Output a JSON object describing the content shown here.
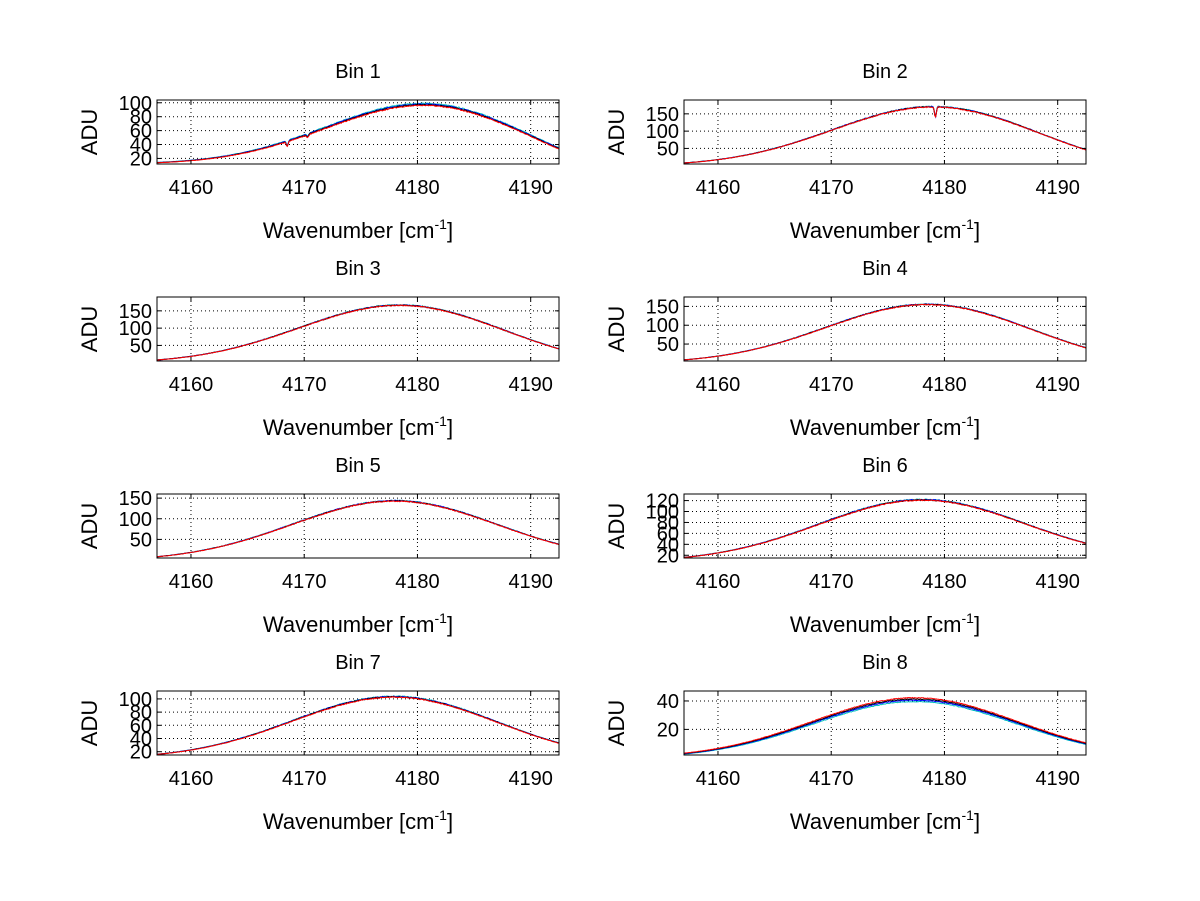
{
  "figure": {
    "background": "#ffffff"
  },
  "chart_data": [
    {
      "type": "line",
      "title": "Bin 1",
      "xlabel": "Wavenumber [cm",
      "xlabel_sup": "-1",
      "xlabel_tail": "]",
      "ylabel": "ADU",
      "xlim": [
        4157,
        4192.5
      ],
      "xticks": [
        4160,
        4170,
        4180,
        4190
      ],
      "ylim": [
        12,
        104
      ],
      "yticks": [
        20,
        40,
        60,
        80,
        100
      ],
      "grid": true,
      "peak_x": 4180,
      "peak_y": 97,
      "base_y": 14,
      "end_y": 34,
      "spread": [
        0,
        2,
        3,
        4
      ],
      "noise": 1.5,
      "dips": [
        {
          "x": 4168.5,
          "depth": 7
        },
        {
          "x": 4170.3,
          "depth": 4
        }
      ],
      "series": [
        {
          "color": "#00bfbf",
          "offset": 2
        },
        {
          "color": "#0000ff",
          "offset": 1
        },
        {
          "color": "#000000",
          "offset": 0
        },
        {
          "color": "#ff0000",
          "offset": -1
        }
      ]
    },
    {
      "type": "line",
      "title": "Bin 2",
      "xlabel": "Wavenumber [cm",
      "xlabel_sup": "-1",
      "xlabel_tail": "]",
      "ylabel": "ADU",
      "xlim": [
        4157,
        4192.5
      ],
      "xticks": [
        4160,
        4170,
        4180,
        4190
      ],
      "ylim": [
        5,
        190
      ],
      "yticks": [
        50,
        100,
        150
      ],
      "grid": true,
      "peak_x": 4178.5,
      "peak_y": 170,
      "base_y": 8,
      "end_y": 46,
      "spread": [
        0,
        1,
        2,
        3
      ],
      "noise": 3,
      "dips": [
        {
          "x": 4179.2,
          "depth": 30
        }
      ],
      "series": [
        {
          "color": "#00bfbf",
          "offset": 1
        },
        {
          "color": "#0000ff",
          "offset": 0.5
        },
        {
          "color": "#000000",
          "offset": 0
        },
        {
          "color": "#ff0000",
          "offset": -0.5
        }
      ]
    },
    {
      "type": "line",
      "title": "Bin 3",
      "xlabel": "Wavenumber [cm",
      "xlabel_sup": "-1",
      "xlabel_tail": "]",
      "ylabel": "ADU",
      "xlim": [
        4157,
        4192.5
      ],
      "xticks": [
        4160,
        4170,
        4180,
        4190
      ],
      "ylim": [
        5,
        190
      ],
      "yticks": [
        50,
        100,
        150
      ],
      "grid": true,
      "peak_x": 4178,
      "peak_y": 166,
      "base_y": 8,
      "end_y": 40,
      "spread": [
        0,
        1,
        2,
        3
      ],
      "noise": 3,
      "dips": [],
      "series": [
        {
          "color": "#00bfbf",
          "offset": 1
        },
        {
          "color": "#0000ff",
          "offset": 0.5
        },
        {
          "color": "#000000",
          "offset": 0
        },
        {
          "color": "#ff0000",
          "offset": -0.5
        }
      ]
    },
    {
      "type": "line",
      "title": "Bin 4",
      "xlabel": "Wavenumber [cm",
      "xlabel_sup": "-1",
      "xlabel_tail": "]",
      "ylabel": "ADU",
      "xlim": [
        4157,
        4192.5
      ],
      "xticks": [
        4160,
        4170,
        4180,
        4190
      ],
      "ylim": [
        5,
        175
      ],
      "yticks": [
        50,
        100,
        150
      ],
      "grid": true,
      "peak_x": 4178,
      "peak_y": 155,
      "base_y": 8,
      "end_y": 40,
      "spread": [
        0,
        1,
        2,
        3
      ],
      "noise": 2.5,
      "dips": [],
      "series": [
        {
          "color": "#00bfbf",
          "offset": 1
        },
        {
          "color": "#0000ff",
          "offset": 0.5
        },
        {
          "color": "#000000",
          "offset": 0
        },
        {
          "color": "#ff0000",
          "offset": -0.5
        }
      ]
    },
    {
      "type": "line",
      "title": "Bin 5",
      "xlabel": "Wavenumber [cm",
      "xlabel_sup": "-1",
      "xlabel_tail": "]",
      "ylabel": "ADU",
      "xlim": [
        4157,
        4192.5
      ],
      "xticks": [
        4160,
        4170,
        4180,
        4190
      ],
      "ylim": [
        5,
        160
      ],
      "yticks": [
        50,
        100,
        150
      ],
      "grid": true,
      "peak_x": 4177.5,
      "peak_y": 143,
      "base_y": 8,
      "end_y": 38,
      "spread": [
        0,
        1,
        2,
        3
      ],
      "noise": 2.5,
      "dips": [],
      "series": [
        {
          "color": "#00bfbf",
          "offset": 1
        },
        {
          "color": "#0000ff",
          "offset": 0.5
        },
        {
          "color": "#000000",
          "offset": 0
        },
        {
          "color": "#ff0000",
          "offset": -0.5
        }
      ]
    },
    {
      "type": "line",
      "title": "Bin 6",
      "xlabel": "Wavenumber [cm",
      "xlabel_sup": "-1",
      "xlabel_tail": "]",
      "ylabel": "ADU",
      "xlim": [
        4157,
        4192.5
      ],
      "xticks": [
        4160,
        4170,
        4180,
        4190
      ],
      "ylim": [
        15,
        132
      ],
      "yticks": [
        20,
        40,
        60,
        80,
        100,
        120
      ],
      "grid": true,
      "peak_x": 4177.5,
      "peak_y": 121,
      "base_y": 16,
      "end_y": 42,
      "spread": [
        0,
        1,
        2,
        3
      ],
      "noise": 2,
      "dips": [],
      "series": [
        {
          "color": "#00bfbf",
          "offset": 1
        },
        {
          "color": "#0000ff",
          "offset": 0.5
        },
        {
          "color": "#000000",
          "offset": 0
        },
        {
          "color": "#ff0000",
          "offset": -0.5
        }
      ]
    },
    {
      "type": "line",
      "title": "Bin 7",
      "xlabel": "Wavenumber [cm",
      "xlabel_sup": "-1",
      "xlabel_tail": "]",
      "ylabel": "ADU",
      "xlim": [
        4157,
        4192.5
      ],
      "xticks": [
        4160,
        4170,
        4180,
        4190
      ],
      "ylim": [
        15,
        112
      ],
      "yticks": [
        20,
        40,
        60,
        80,
        100
      ],
      "grid": true,
      "peak_x": 4177.5,
      "peak_y": 103,
      "base_y": 16,
      "end_y": 33,
      "spread": [
        0,
        1,
        2,
        3
      ],
      "noise": 1.5,
      "dips": [],
      "series": [
        {
          "color": "#00bfbf",
          "offset": 1
        },
        {
          "color": "#0000ff",
          "offset": 0.5
        },
        {
          "color": "#000000",
          "offset": 0
        },
        {
          "color": "#ff0000",
          "offset": -0.5
        }
      ]
    },
    {
      "type": "line",
      "title": "Bin 8",
      "xlabel": "Wavenumber [cm",
      "xlabel_sup": "-1",
      "xlabel_tail": "]",
      "ylabel": "ADU",
      "xlim": [
        4157,
        4192.5
      ],
      "xticks": [
        4160,
        4170,
        4180,
        4190
      ],
      "ylim": [
        2,
        47
      ],
      "yticks": [
        20,
        40
      ],
      "grid": true,
      "peak_x": 4177,
      "peak_y": 41,
      "base_y": 3,
      "end_y": 10,
      "spread": [
        0,
        1,
        2,
        3
      ],
      "noise": 0.5,
      "dips": [],
      "series": [
        {
          "color": "#00bfbf",
          "offset": -1.5
        },
        {
          "color": "#0000ff",
          "offset": -0.5
        },
        {
          "color": "#000000",
          "offset": 0.3
        },
        {
          "color": "#ff0000",
          "offset": 1.2
        }
      ]
    }
  ]
}
